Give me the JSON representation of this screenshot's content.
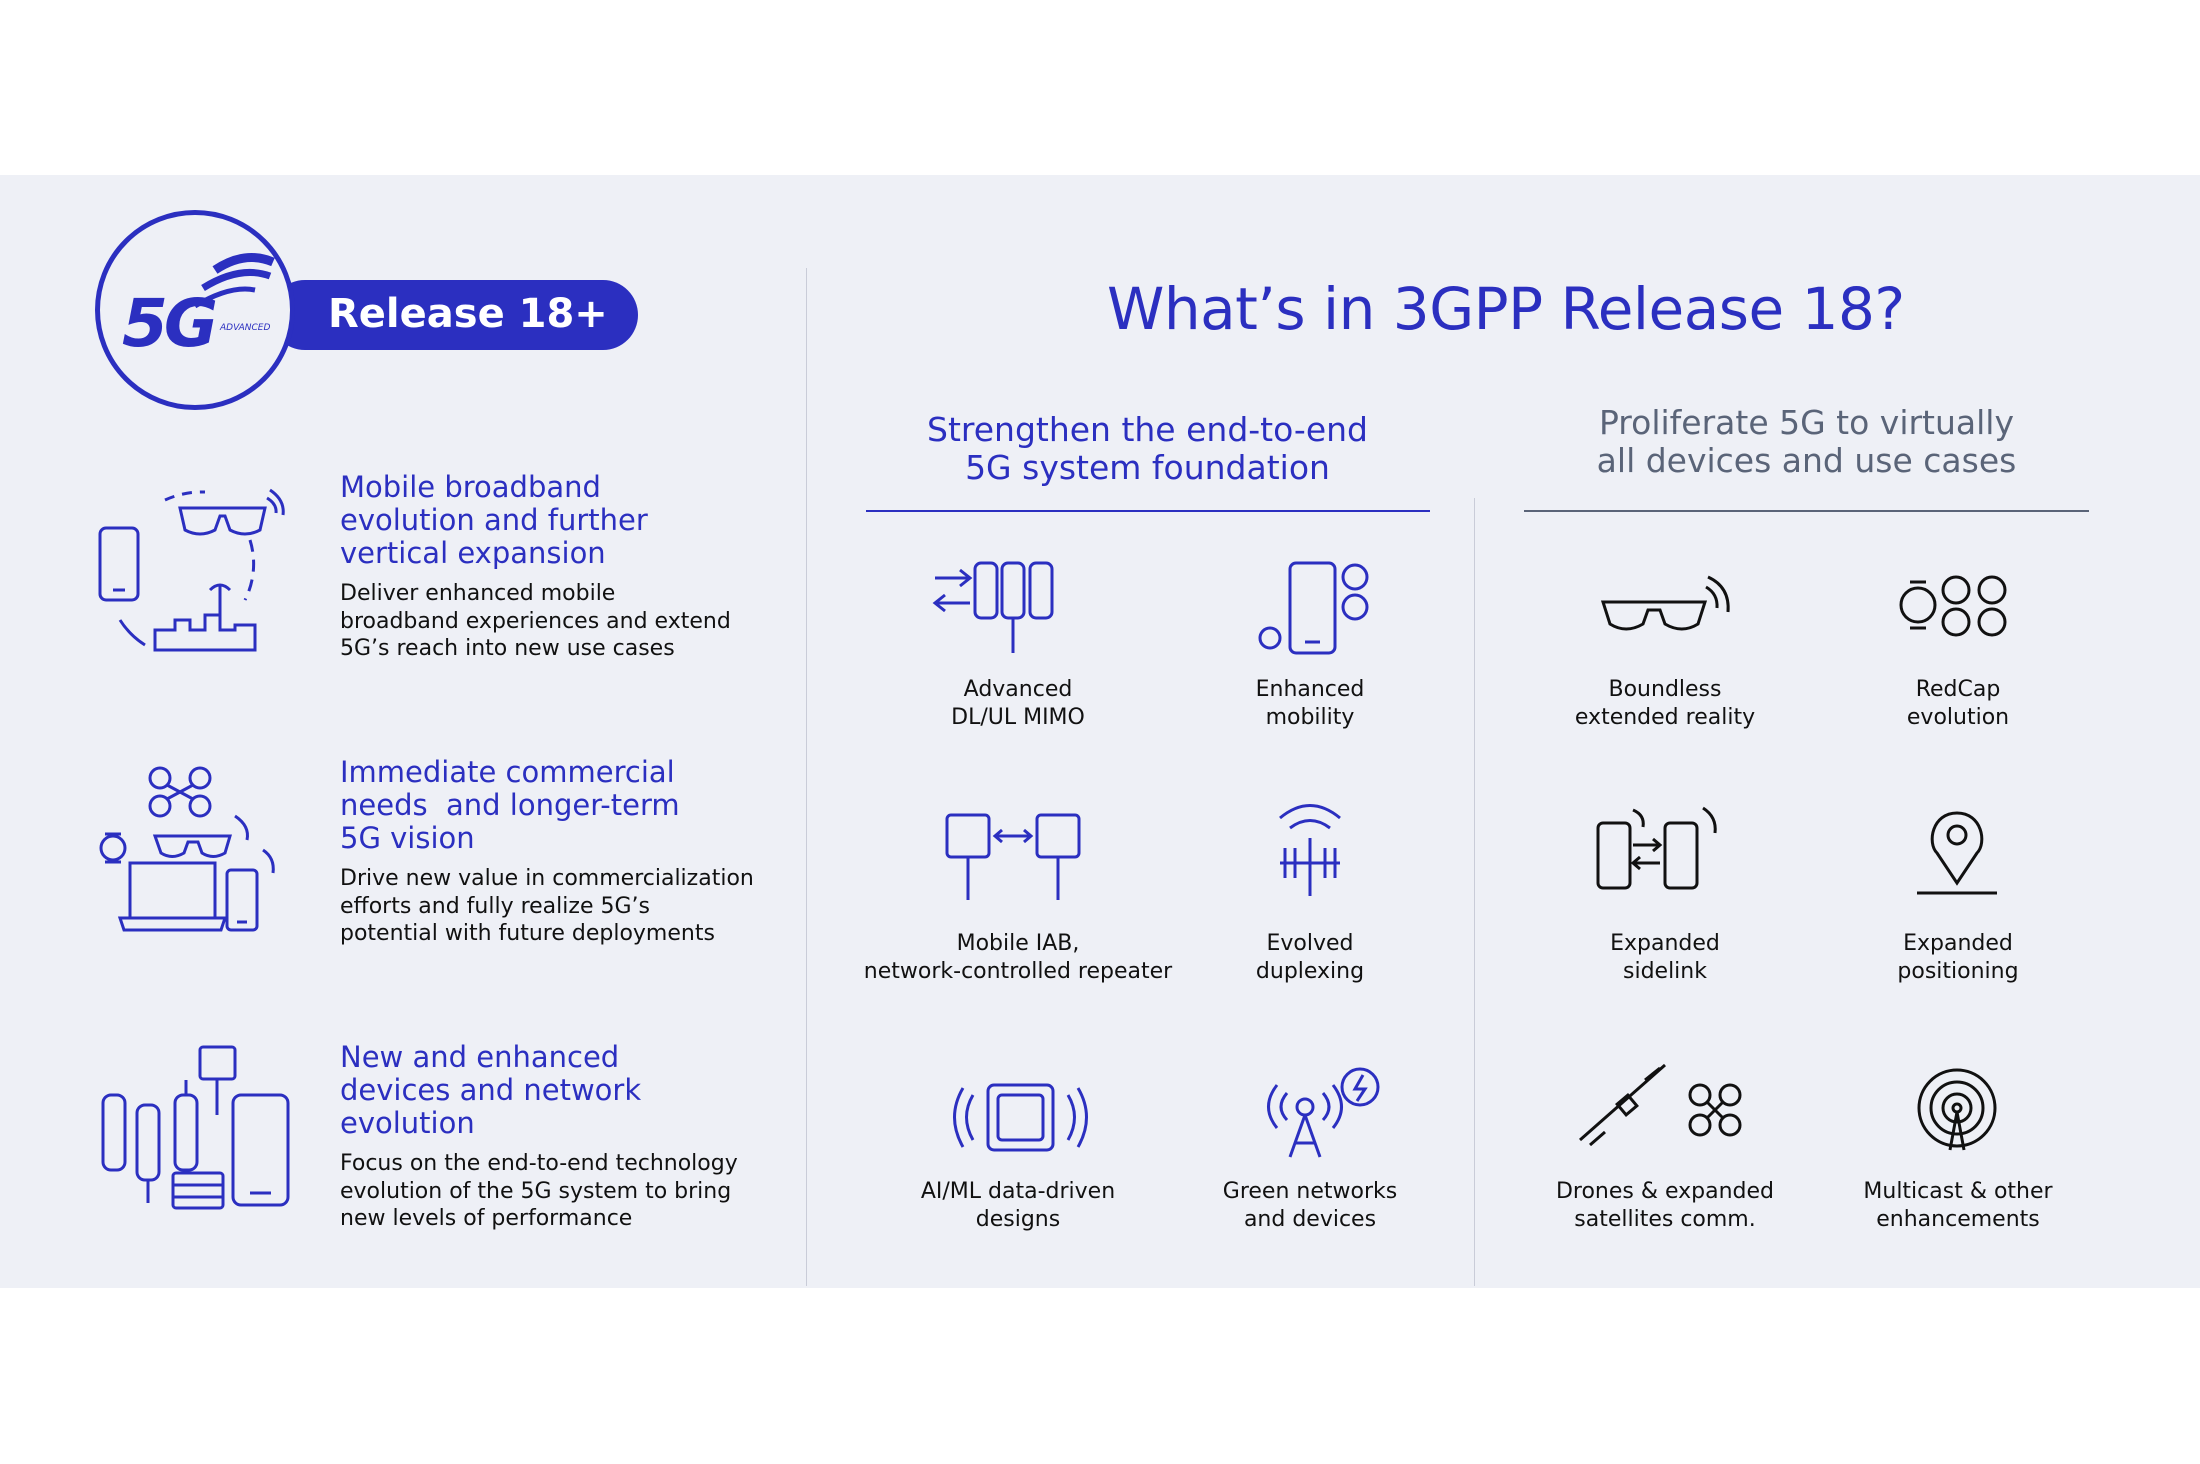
{
  "logo": {
    "mark": "5G",
    "mark_sub": "ADVANCED",
    "badge": "Release 18+"
  },
  "left_items": [
    {
      "heading": "Mobile broadband\nevolution and further\nvertical expansion",
      "body": "Deliver enhanced mobile\nbroadband experiences and extend\n5G’s reach into new use cases",
      "icon": "broadband-expansion-icon"
    },
    {
      "heading": "Immediate commercial\nneeds  and longer-term\n5G vision",
      "body": "Drive new value in commercialization\nefforts and fully realize 5G’s\npotential with future deployments",
      "icon": "commercial-vision-icon"
    },
    {
      "heading": "New and enhanced\ndevices and network\nevolution",
      "body": "Focus on the end-to-end technology\nevolution of the 5G system to bring\nnew levels of performance",
      "icon": "devices-network-icon"
    }
  ],
  "title": "What’s in 3GPP Release 18?",
  "columns": [
    {
      "heading": "Strengthen the end-to-end\n5G system foundation",
      "items": [
        {
          "label": "Advanced\nDL/UL MIMO",
          "icon": "mimo-antenna-icon"
        },
        {
          "label": "Enhanced\nmobility",
          "icon": "mobility-phone-icon"
        },
        {
          "label": "Mobile IAB,\nnetwork-controlled repeater",
          "icon": "iab-repeater-icon"
        },
        {
          "label": "Evolved\nduplexing",
          "icon": "duplexing-antenna-icon"
        },
        {
          "label": "AI/ML data-driven\ndesigns",
          "icon": "ai-chip-icon"
        },
        {
          "label": "Green networks\nand devices",
          "icon": "green-tower-icon"
        }
      ]
    },
    {
      "heading": "Proliferate 5G to virtually\nall devices and use cases",
      "items": [
        {
          "label": "Boundless\nextended reality",
          "icon": "xr-glasses-icon"
        },
        {
          "label": "RedCap\nevolution",
          "icon": "redcap-devices-icon"
        },
        {
          "label": "Expanded\nsidelink",
          "icon": "sidelink-phones-icon"
        },
        {
          "label": "Expanded\npositioning",
          "icon": "location-pin-icon"
        },
        {
          "label": "Drones & expanded\nsatellites comm.",
          "icon": "drone-satellite-icon"
        },
        {
          "label": "Multicast & other\nenhancements",
          "icon": "multicast-icon"
        }
      ]
    }
  ],
  "colors": {
    "accent": "#2b2fc0",
    "background": "#eef0f6",
    "text": "#111111",
    "secondary_heading": "#5a6478"
  }
}
